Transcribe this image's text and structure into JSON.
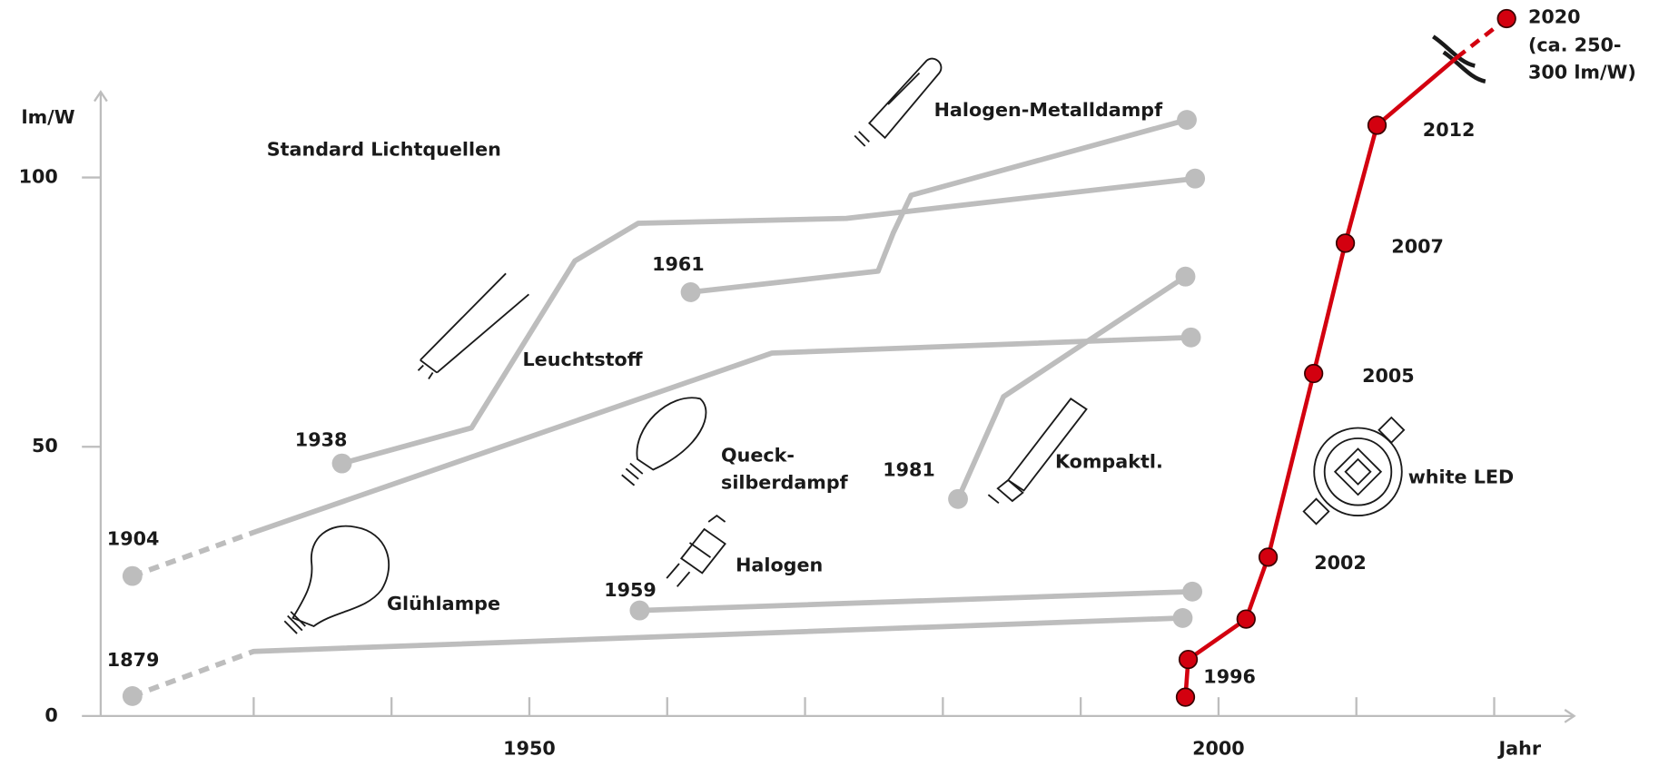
{
  "chart_data": {
    "type": "line",
    "title": "Standard Lichtquellen",
    "y_label": "lm/W",
    "x_label": "Jahr",
    "xlim": [
      1918.9,
      2025.8
    ],
    "ylim": [
      0,
      115.9
    ],
    "xticks": [
      {
        "value": 1930,
        "label": null
      },
      {
        "value": 1940,
        "label": null
      },
      1950,
      {
        "value": 1960,
        "label": null
      },
      {
        "value": 1970,
        "label": null
      },
      {
        "value": 1980,
        "label": null
      },
      {
        "value": 1990,
        "label": null
      },
      2000,
      {
        "value": 2010,
        "label": null
      },
      {
        "value": 2020,
        "label": null
      }
    ],
    "yticks": [
      0,
      50,
      100
    ],
    "series": [
      {
        "color": "#bdbdbd",
        "x": [
          1921.2,
          1930,
          1997.4
        ],
        "values": [
          3.7,
          12.0,
          18.2
        ],
        "dashed_segments": [
          0
        ],
        "markers": [
          0,
          2
        ]
      },
      {
        "color": "#bdbdbd",
        "x": [
          1921.2,
          1930,
          1967.6,
          1998.0
        ],
        "values": [
          26.0,
          34.1,
          67.4,
          70.3
        ],
        "dashed_segments": [
          0
        ],
        "markers": [
          0,
          3
        ]
      },
      {
        "color": "#bdbdbd",
        "x": [
          1936.4,
          1945.8,
          1953.3,
          1957.9,
          1973.0,
          1998.3
        ],
        "values": [
          46.9,
          53.5,
          84.5,
          91.5,
          92.4,
          99.8
        ],
        "dashed_segments": [],
        "markers": [
          0,
          5
        ]
      },
      {
        "color": "#bdbdbd",
        "x": [
          1961.7,
          1975.3,
          1976.4,
          1977.7,
          1997.7
        ],
        "values": [
          78.7,
          82.6,
          89.7,
          96.7,
          110.7
        ],
        "dashed_segments": [],
        "markers": [
          0,
          4
        ]
      },
      {
        "color": "#bdbdbd",
        "x": [
          1981.1,
          1984.4,
          1997.6
        ],
        "values": [
          40.3,
          59.3,
          81.6
        ],
        "dashed_segments": [],
        "markers": [
          0,
          2
        ]
      },
      {
        "color": "#bdbdbd",
        "x": [
          1958.0,
          1998.1
        ],
        "values": [
          19.6,
          23.1
        ],
        "dashed_segments": [],
        "markers": [
          0,
          1
        ]
      },
      {
        "color": "#d3000f",
        "x": [
          1997.6,
          1997.8,
          2002.0,
          2003.6,
          2006.9,
          2009.2,
          2011.5,
          2017.3,
          2020.9
        ],
        "values": [
          3.5,
          10.5,
          18.0,
          29.5,
          63.6,
          87.8,
          109.7,
          122.3,
          129.5
        ],
        "dashed_segments": [
          7
        ],
        "markers": [
          0,
          1,
          2,
          3,
          4,
          5,
          6,
          8
        ]
      }
    ],
    "annotations": [
      "Halogen-Metalldampf",
      "1961",
      "Leuchtstoff",
      "1938",
      "Queck-",
      "silberdampf",
      "1981",
      "Kompaktl.",
      "1904",
      "Halogen",
      "1959",
      "Glühlampe",
      "1879",
      "2020",
      "(ca. 250-",
      "300 lm/W)",
      "2012",
      "2007",
      "2005",
      "white LED",
      "2002",
      "1996"
    ]
  }
}
